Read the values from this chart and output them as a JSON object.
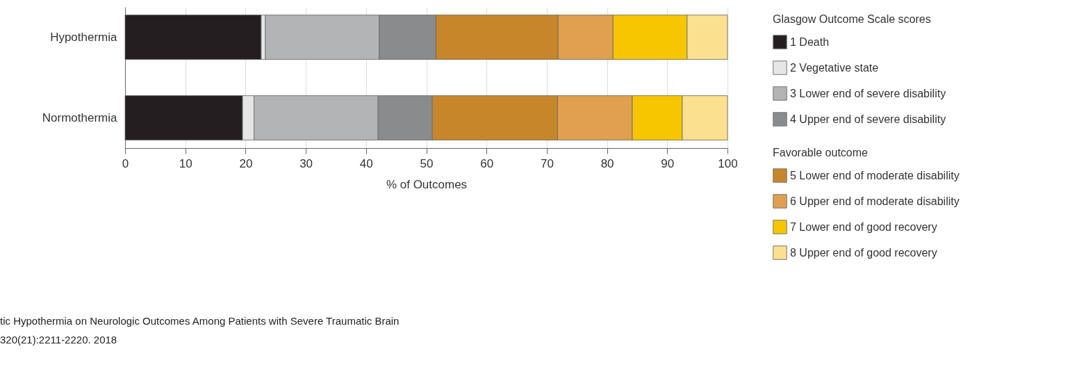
{
  "chart_data": {
    "type": "bar",
    "orientation": "horizontal",
    "stacked": true,
    "categories": [
      "Hypothermia",
      "Normothermia"
    ],
    "xlabel": "% of Outcomes",
    "legend_title": "Glasgow Outcome Scale scores",
    "xlim": [
      0,
      100
    ],
    "xticks": [
      0,
      10,
      20,
      30,
      40,
      50,
      60,
      70,
      80,
      90,
      100
    ],
    "grid": "x",
    "legend": "right",
    "series": [
      {
        "name": "1 Death",
        "color": "#231f20",
        "values": [
          22.6,
          19.5
        ]
      },
      {
        "name": "2 Vegetative state",
        "color": "#e6e6e6",
        "values": [
          0.7,
          1.9
        ]
      },
      {
        "name": "3 Lower end of severe disability",
        "color": "#b3b4b6",
        "values": [
          18.9,
          20.6
        ]
      },
      {
        "name": "4 Upper end of severe disability",
        "color": "#8a8b8d",
        "values": [
          9.4,
          9.0
        ]
      },
      {
        "name": "5 Lower end of moderate disability",
        "color": "#c8862a",
        "values": [
          20.3,
          20.8
        ]
      },
      {
        "name": "6 Upper end of moderate disability",
        "color": "#e0a050",
        "values": [
          9.1,
          12.4
        ]
      },
      {
        "name": "7 Lower end of good recovery",
        "color": "#f7c600",
        "values": [
          12.3,
          8.3
        ]
      },
      {
        "name": "8 Upper end of good recovery",
        "color": "#fbe08f",
        "values": [
          6.7,
          7.5
        ]
      }
    ],
    "annotations": [
      "Favorable outcome",
      "tic Hypothermia on Neurologic Outcomes Among Patients with Severe Traumatic Brain",
      "320(21):2211-2220. 2018"
    ]
  }
}
